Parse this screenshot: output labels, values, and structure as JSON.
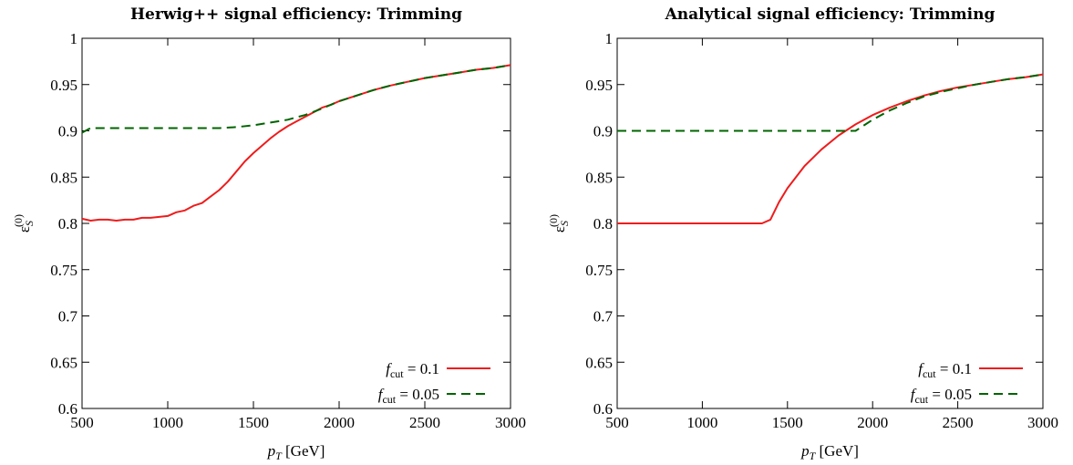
{
  "chart_data": [
    {
      "type": "line",
      "title": "Herwig++ signal efficiency: Trimming",
      "xlabel": "p_T [GeV]",
      "ylabel": "ε_S^(0)",
      "xlim": [
        500,
        3000
      ],
      "ylim": [
        0.6,
        1
      ],
      "xticks": [
        "500",
        "1000",
        "1500",
        "2000",
        "2500",
        "3000"
      ],
      "yticks": [
        "0.6",
        "0.65",
        "0.7",
        "0.75",
        "0.8",
        "0.85",
        "0.9",
        "0.95",
        "1"
      ],
      "grid": false,
      "legend_position": "bottom-right",
      "series": [
        {
          "name": "f_cut = 0.1",
          "color": "#ee1c1c",
          "dash": "solid",
          "x": [
            500,
            550,
            600,
            650,
            700,
            750,
            800,
            850,
            900,
            950,
            1000,
            1050,
            1100,
            1150,
            1200,
            1250,
            1300,
            1350,
            1400,
            1450,
            1500,
            1550,
            1600,
            1650,
            1700,
            1750,
            1800,
            1850,
            1900,
            1950,
            2000,
            2100,
            2200,
            2300,
            2400,
            2500,
            2600,
            2700,
            2800,
            2900,
            3000
          ],
          "y": [
            0.805,
            0.803,
            0.804,
            0.804,
            0.803,
            0.804,
            0.804,
            0.806,
            0.806,
            0.807,
            0.808,
            0.812,
            0.814,
            0.819,
            0.822,
            0.829,
            0.836,
            0.845,
            0.856,
            0.867,
            0.876,
            0.884,
            0.892,
            0.899,
            0.905,
            0.91,
            0.915,
            0.92,
            0.925,
            0.928,
            0.932,
            0.938,
            0.944,
            0.949,
            0.953,
            0.957,
            0.96,
            0.963,
            0.966,
            0.968,
            0.971
          ]
        },
        {
          "name": "f_cut = 0.05",
          "color": "#006400",
          "dash": "dashed",
          "x": [
            500,
            550,
            600,
            700,
            800,
            900,
            1000,
            1100,
            1200,
            1300,
            1400,
            1500,
            1600,
            1700,
            1800,
            1900,
            2000,
            2100,
            2200,
            2300,
            2400,
            2500,
            2600,
            2700,
            2800,
            2900,
            3000
          ],
          "y": [
            0.898,
            0.903,
            0.903,
            0.903,
            0.903,
            0.903,
            0.903,
            0.903,
            0.903,
            0.903,
            0.904,
            0.906,
            0.909,
            0.912,
            0.917,
            0.924,
            0.932,
            0.938,
            0.944,
            0.949,
            0.953,
            0.957,
            0.96,
            0.963,
            0.966,
            0.968,
            0.971
          ]
        }
      ]
    },
    {
      "type": "line",
      "title": "Analytical signal efficiency: Trimming",
      "xlabel": "p_T [GeV]",
      "ylabel": "ε_S^(0)",
      "xlim": [
        500,
        3000
      ],
      "ylim": [
        0.6,
        1
      ],
      "xticks": [
        "500",
        "1000",
        "1500",
        "2000",
        "2500",
        "3000"
      ],
      "yticks": [
        "0.6",
        "0.65",
        "0.7",
        "0.75",
        "0.8",
        "0.85",
        "0.9",
        "0.95",
        "1"
      ],
      "grid": false,
      "legend_position": "bottom-right",
      "series": [
        {
          "name": "f_cut = 0.1",
          "color": "#ee1c1c",
          "dash": "solid",
          "x": [
            500,
            1350,
            1400,
            1450,
            1500,
            1600,
            1700,
            1800,
            1900,
            2000,
            2100,
            2200,
            2300,
            2400,
            2500,
            2600,
            2700,
            2800,
            2900,
            3000
          ],
          "y": [
            0.8,
            0.8,
            0.804,
            0.823,
            0.838,
            0.862,
            0.88,
            0.895,
            0.907,
            0.917,
            0.925,
            0.932,
            0.938,
            0.943,
            0.947,
            0.95,
            0.953,
            0.956,
            0.958,
            0.961
          ]
        },
        {
          "name": "f_cut = 0.05",
          "color": "#006400",
          "dash": "dashed",
          "x": [
            500,
            1900,
            2000,
            2100,
            2200,
            2300,
            2400,
            2500,
            2600,
            2700,
            2800,
            2900,
            3000
          ],
          "y": [
            0.9,
            0.9,
            0.912,
            0.922,
            0.93,
            0.937,
            0.942,
            0.946,
            0.95,
            0.953,
            0.956,
            0.958,
            0.961
          ]
        }
      ]
    }
  ]
}
